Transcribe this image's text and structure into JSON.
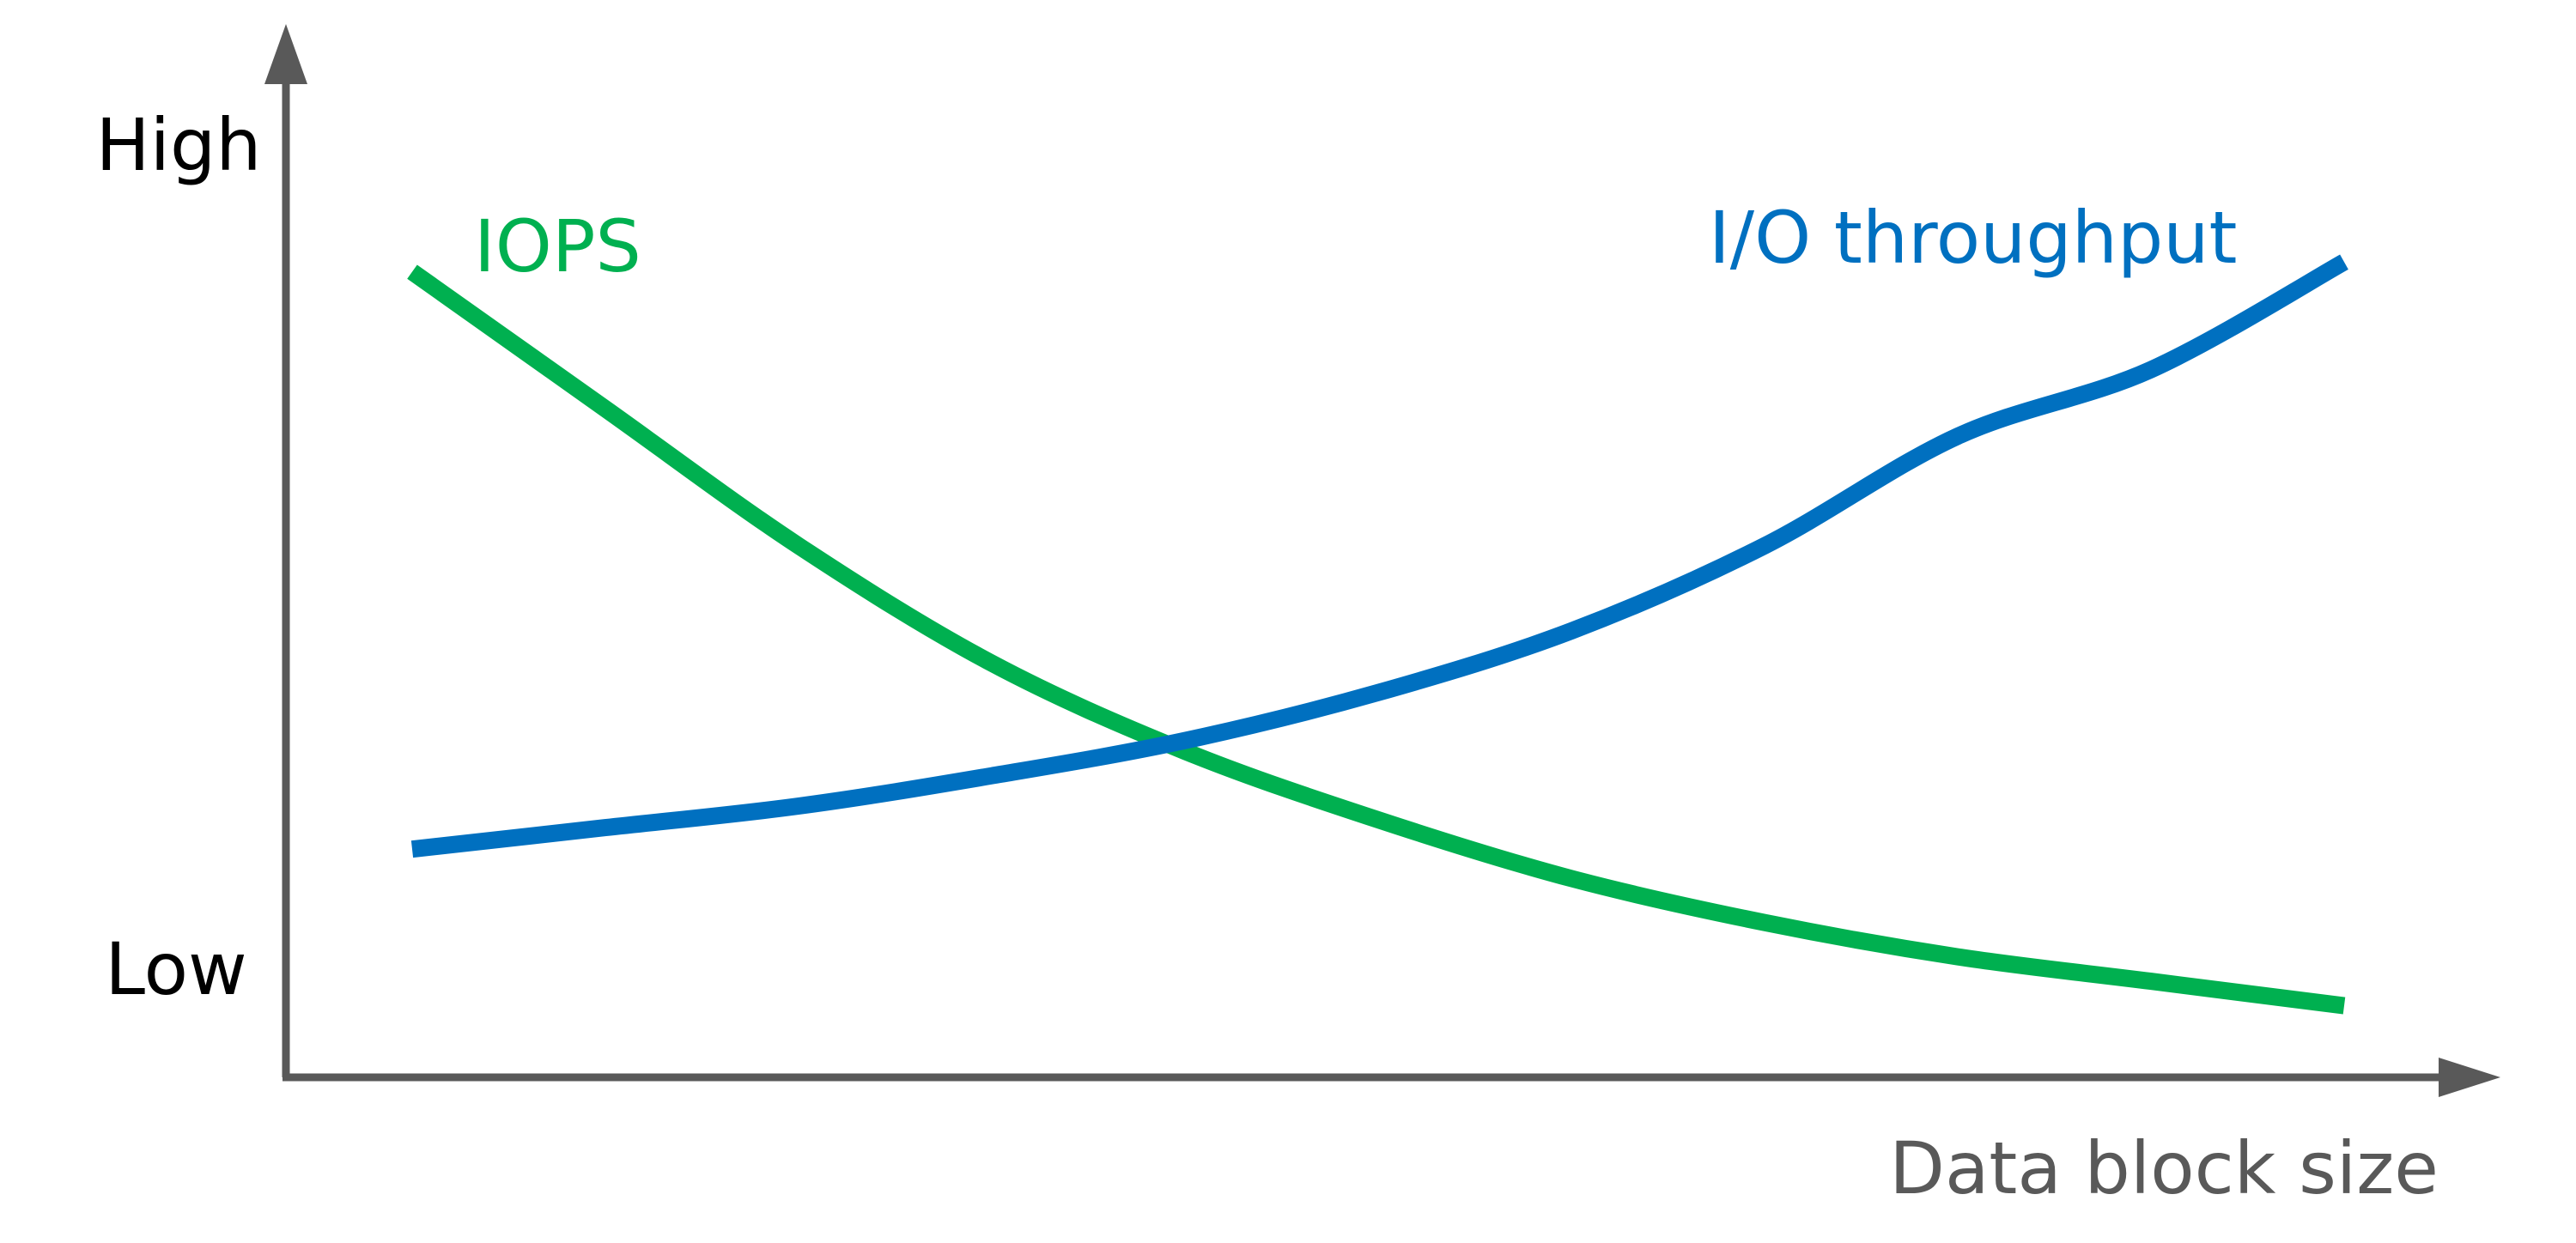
{
  "chart_data": {
    "type": "line",
    "title": "",
    "xlabel": "Data block size",
    "ylabel": "",
    "y_tick_labels": [
      "High",
      "Low"
    ],
    "xlim": [
      0,
      10
    ],
    "ylim": [
      0,
      10
    ],
    "grid": false,
    "legend": "none",
    "series": [
      {
        "name": "IOPS",
        "color": "#00b050",
        "x": [
          0,
          1,
          2,
          3,
          4,
          5,
          6,
          7,
          8,
          9,
          10
        ],
        "y": [
          8.1,
          6.7,
          5.3,
          4.1,
          3.2,
          2.5,
          1.9,
          1.45,
          1.1,
          0.85,
          0.6
        ]
      },
      {
        "name": "I/O throughput",
        "color": "#0070c0",
        "x": [
          0,
          1,
          2,
          3,
          4,
          5,
          6,
          7,
          8,
          9,
          10
        ],
        "y": [
          2.2,
          2.42,
          2.64,
          2.95,
          3.31,
          3.8,
          4.43,
          5.3,
          6.42,
          7.1,
          8.2
        ]
      }
    ]
  }
}
